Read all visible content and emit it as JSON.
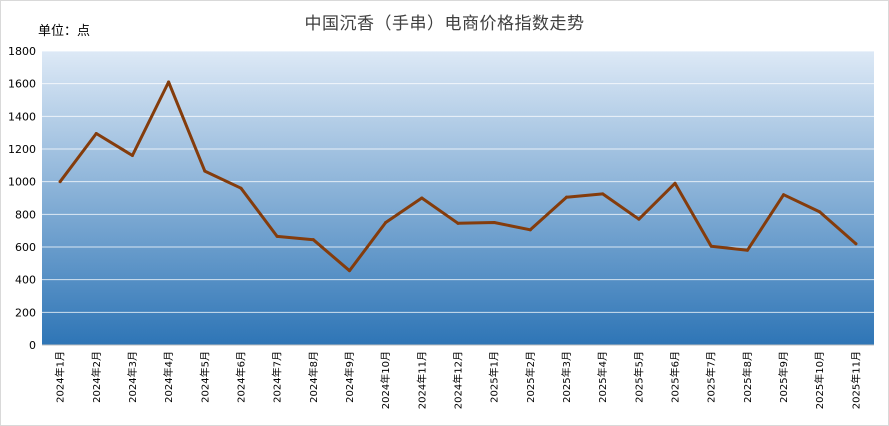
{
  "chart_data": {
    "type": "line",
    "title": "中国沉香（手串）电商价格指数走势",
    "ylabel": "单位：点",
    "xlabel": "",
    "ylim": [
      0,
      1800
    ],
    "yticks": [
      0,
      200,
      400,
      600,
      800,
      1000,
      1200,
      1400,
      1600,
      1800
    ],
    "categories": [
      "2024年1月",
      "2024年2月",
      "2024年3月",
      "2024年4月",
      "2024年5月",
      "2024年6月",
      "2024年7月",
      "2024年8月",
      "2024年9月",
      "2024年10月",
      "2024年11月",
      "2024年12月",
      "2025年1月",
      "2025年2月",
      "2025年3月",
      "2025年4月",
      "2025年5月",
      "2025年6月",
      "2025年7月",
      "2025年8月",
      "2025年9月",
      "2025年10月",
      "2025年11月"
    ],
    "series": [
      {
        "values": [
          1000,
          1295,
          1160,
          1610,
          1065,
          960,
          665,
          645,
          455,
          750,
          900,
          745,
          750,
          705,
          905,
          925,
          770,
          990,
          605,
          580,
          920,
          815,
          620
        ],
        "color": "#843c0c"
      }
    ],
    "grid": true,
    "legend": "none",
    "background_gradient": [
      "#dde9f6",
      "#2e75b6"
    ]
  }
}
